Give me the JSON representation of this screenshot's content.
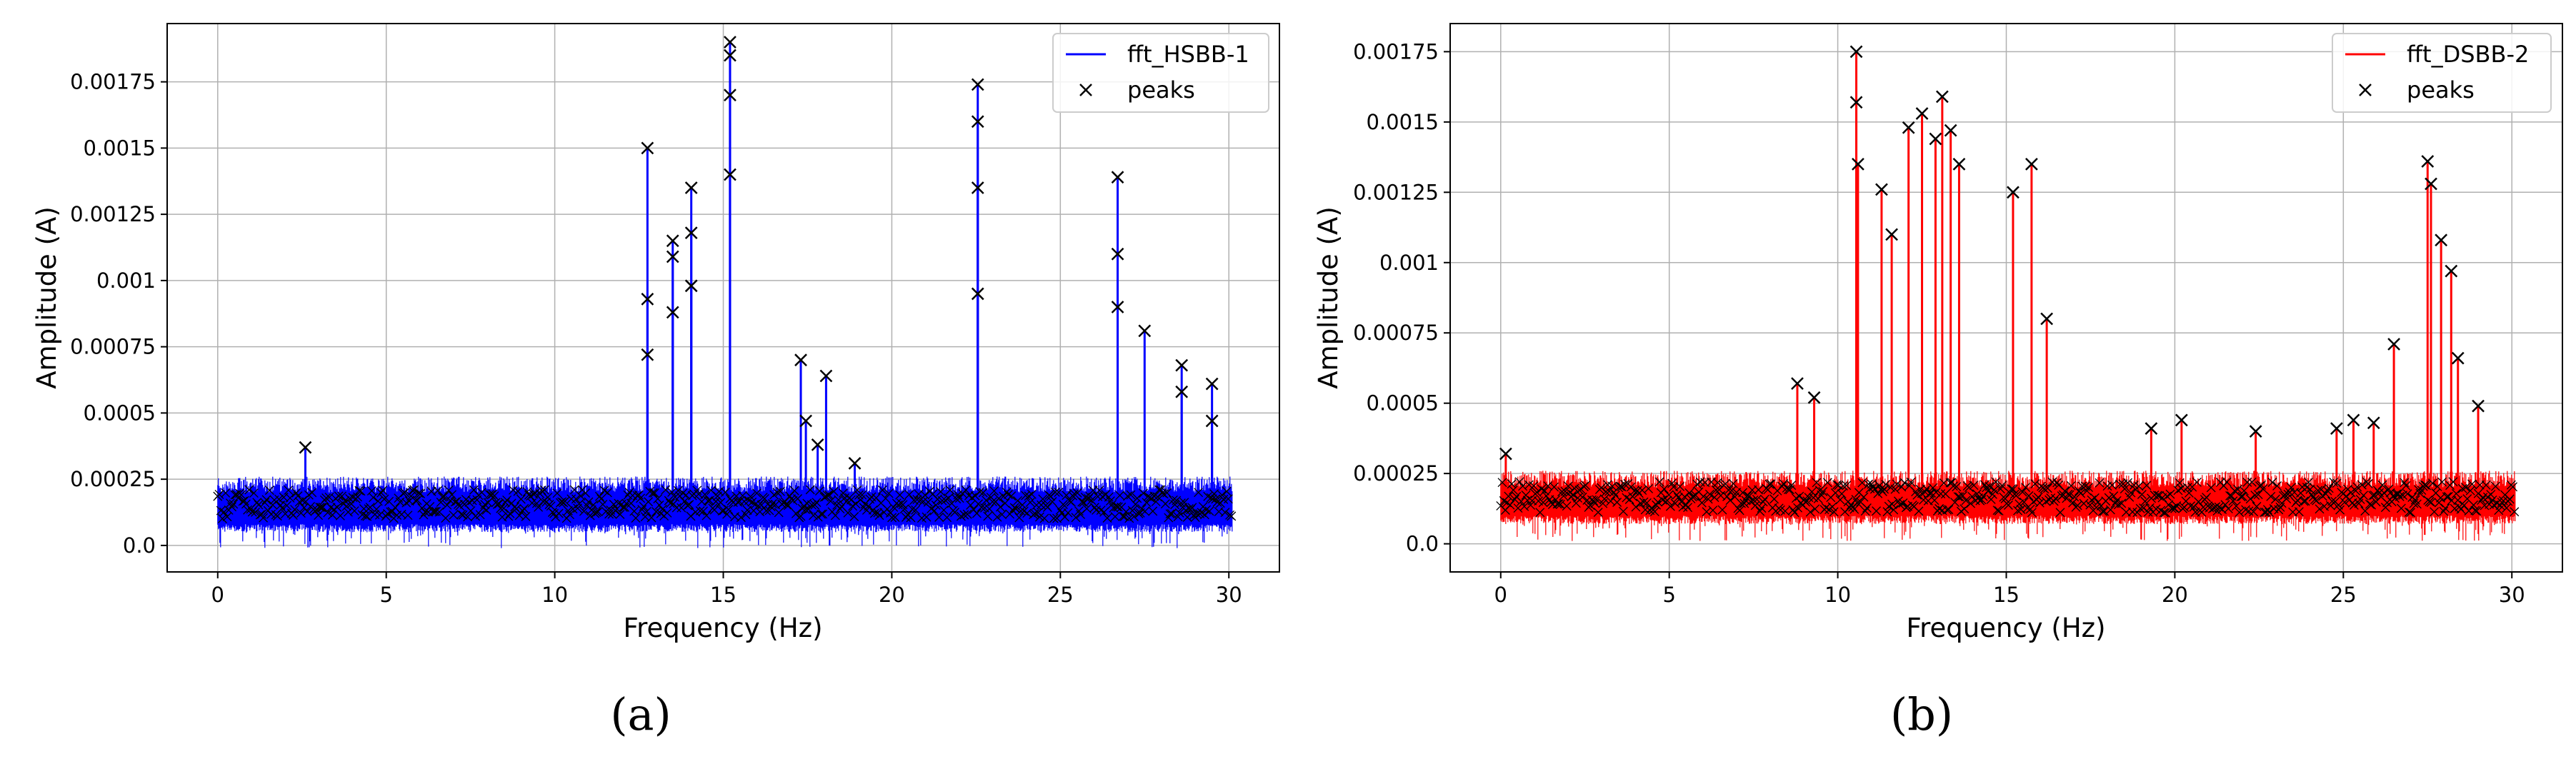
{
  "chart_data": [
    {
      "panel": "(a)",
      "type": "line",
      "xlabel": "Frequency (Hz)",
      "ylabel": "Amplitude (A)",
      "xlim": [
        -1.5,
        31.5
      ],
      "ylim": [
        -0.0001,
        0.00197
      ],
      "x_ticks": [
        0,
        5,
        10,
        15,
        20,
        25,
        30
      ],
      "x_tick_labels": [
        "0",
        "5",
        "10",
        "15",
        "20",
        "25",
        "30"
      ],
      "y_ticks": [
        0,
        0.00025,
        0.0005,
        0.00075,
        0.001,
        0.00125,
        0.0015,
        0.00175
      ],
      "y_tick_labels": [
        "0.0",
        "0.00025",
        "0.0005",
        "0.00075",
        "0.001",
        "0.00125",
        "0.0015",
        "0.00175"
      ],
      "grid": true,
      "legend_position": "top-right",
      "colors": {
        "line": "#0000ff",
        "peaks": "#000000"
      },
      "series": [
        {
          "name": "fft_HSBB-1",
          "kind": "line",
          "noise_floor": 0.00015,
          "noise_band": [
            8e-05,
            0.00026
          ],
          "range": [
            0,
            30.1
          ]
        },
        {
          "name": "peaks",
          "kind": "markers",
          "marker": "x"
        }
      ],
      "peaks": [
        {
          "x": 2.6,
          "y": 0.00037
        },
        {
          "x": 12.75,
          "y": 0.0015
        },
        {
          "x": 12.75,
          "y": 0.00093
        },
        {
          "x": 12.75,
          "y": 0.00072
        },
        {
          "x": 13.5,
          "y": 0.00115
        },
        {
          "x": 13.5,
          "y": 0.00109
        },
        {
          "x": 13.5,
          "y": 0.00088
        },
        {
          "x": 14.05,
          "y": 0.00135
        },
        {
          "x": 14.05,
          "y": 0.00118
        },
        {
          "x": 14.05,
          "y": 0.00098
        },
        {
          "x": 15.2,
          "y": 0.0019
        },
        {
          "x": 15.2,
          "y": 0.00185
        },
        {
          "x": 15.2,
          "y": 0.0017
        },
        {
          "x": 15.2,
          "y": 0.0014
        },
        {
          "x": 17.3,
          "y": 0.0007
        },
        {
          "x": 17.45,
          "y": 0.00047
        },
        {
          "x": 17.8,
          "y": 0.00038
        },
        {
          "x": 18.05,
          "y": 0.00064
        },
        {
          "x": 18.9,
          "y": 0.00031
        },
        {
          "x": 22.55,
          "y": 0.00174
        },
        {
          "x": 22.55,
          "y": 0.0016
        },
        {
          "x": 22.55,
          "y": 0.00135
        },
        {
          "x": 22.55,
          "y": 0.00095
        },
        {
          "x": 26.7,
          "y": 0.00139
        },
        {
          "x": 26.7,
          "y": 0.0011
        },
        {
          "x": 26.7,
          "y": 0.0009
        },
        {
          "x": 27.5,
          "y": 0.00081
        },
        {
          "x": 28.6,
          "y": 0.00068
        },
        {
          "x": 28.6,
          "y": 0.00058
        },
        {
          "x": 29.5,
          "y": 0.00061
        },
        {
          "x": 29.5,
          "y": 0.00047
        }
      ]
    },
    {
      "panel": "(b)",
      "type": "line",
      "xlabel": "Frequency (Hz)",
      "ylabel": "Amplitude (A)",
      "xlim": [
        -1.5,
        31.5
      ],
      "ylim": [
        -0.0001,
        0.00185
      ],
      "x_ticks": [
        0,
        5,
        10,
        15,
        20,
        25,
        30
      ],
      "x_tick_labels": [
        "0",
        "5",
        "10",
        "15",
        "20",
        "25",
        "30"
      ],
      "y_ticks": [
        0,
        0.00025,
        0.0005,
        0.00075,
        0.001,
        0.00125,
        0.0015,
        0.00175
      ],
      "y_tick_labels": [
        "0.0",
        "0.00025",
        "0.0005",
        "0.00075",
        "0.001",
        "0.00125",
        "0.0015",
        "0.00175"
      ],
      "grid": true,
      "legend_position": "top-right",
      "colors": {
        "line": "#ff0000",
        "peaks": "#000000"
      },
      "series": [
        {
          "name": "fft_DSBB-2",
          "kind": "line",
          "noise_floor": 0.00016,
          "noise_band": [
            0.0001,
            0.00026
          ],
          "range": [
            0,
            30.1
          ]
        },
        {
          "name": "peaks",
          "kind": "markers",
          "marker": "x"
        }
      ],
      "peaks": [
        {
          "x": 0.15,
          "y": 0.00032
        },
        {
          "x": 8.8,
          "y": 0.00057
        },
        {
          "x": 9.3,
          "y": 0.00052
        },
        {
          "x": 10.55,
          "y": 0.00175
        },
        {
          "x": 10.55,
          "y": 0.00157
        },
        {
          "x": 10.6,
          "y": 0.00135
        },
        {
          "x": 11.3,
          "y": 0.00126
        },
        {
          "x": 11.6,
          "y": 0.0011
        },
        {
          "x": 12.1,
          "y": 0.00148
        },
        {
          "x": 12.5,
          "y": 0.00153
        },
        {
          "x": 12.9,
          "y": 0.00144
        },
        {
          "x": 13.1,
          "y": 0.00159
        },
        {
          "x": 13.35,
          "y": 0.00147
        },
        {
          "x": 13.6,
          "y": 0.00135
        },
        {
          "x": 15.2,
          "y": 0.00125
        },
        {
          "x": 15.75,
          "y": 0.00135
        },
        {
          "x": 16.2,
          "y": 0.0008
        },
        {
          "x": 19.3,
          "y": 0.00041
        },
        {
          "x": 20.2,
          "y": 0.00044
        },
        {
          "x": 22.4,
          "y": 0.0004
        },
        {
          "x": 24.8,
          "y": 0.00041
        },
        {
          "x": 25.3,
          "y": 0.00044
        },
        {
          "x": 25.9,
          "y": 0.00043
        },
        {
          "x": 26.5,
          "y": 0.00071
        },
        {
          "x": 27.5,
          "y": 0.00136
        },
        {
          "x": 27.6,
          "y": 0.00128
        },
        {
          "x": 27.9,
          "y": 0.00108
        },
        {
          "x": 28.2,
          "y": 0.00097
        },
        {
          "x": 29.0,
          "y": 0.00049
        },
        {
          "x": 28.4,
          "y": 0.00066
        }
      ]
    }
  ],
  "captions": [
    "(a)",
    "(b)"
  ]
}
